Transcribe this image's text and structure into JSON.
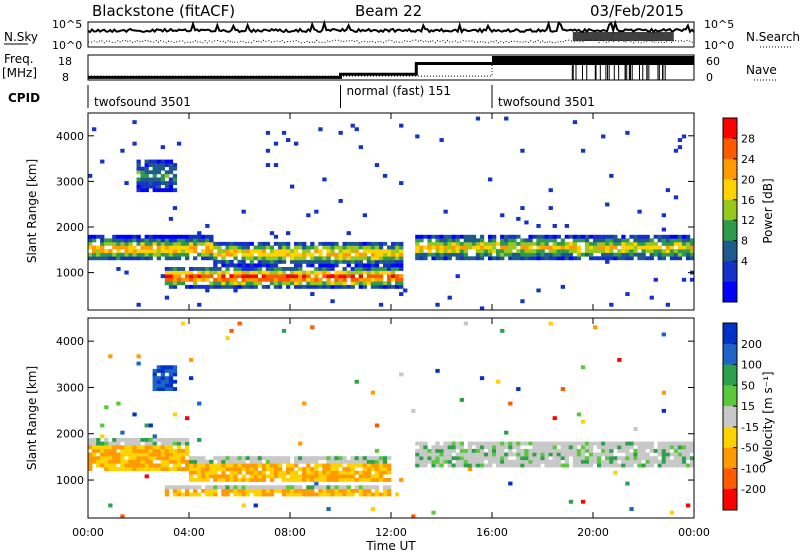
{
  "header": {
    "station": "Blackstone (fitACF)",
    "beam": "Beam 22",
    "date": "03/Feb/2015"
  },
  "status": {
    "nsky_label": "N.Sky",
    "nsearch_label": "N.Search",
    "noise_left_ticks": [
      "10^5",
      "10^0"
    ],
    "noise_right_ticks": [
      "10^5",
      "10^0"
    ],
    "freq_label_top": "Freq.",
    "freq_label_unit": "[MHz]",
    "freq_ticks": [
      "18",
      "8"
    ],
    "nave_label": "Nave",
    "nave_ticks": [
      "60",
      "0"
    ],
    "cpid_label": "CPID",
    "cpid_segments": [
      {
        "name": "twofsound 3501",
        "start_h": 0,
        "end_h": 10
      },
      {
        "name": "normal (fast) 151",
        "start_h": 10,
        "end_h": 16
      },
      {
        "name": "twofsound 3501",
        "start_h": 16,
        "end_h": 24
      }
    ],
    "freq_series_mhz": [
      [
        0,
        9.2
      ],
      [
        10,
        9.2
      ],
      [
        10,
        10.6
      ],
      [
        13,
        10.6
      ],
      [
        13,
        15.5
      ],
      [
        24,
        15.5
      ]
    ],
    "nave_series": [
      [
        0,
        8
      ],
      [
        16,
        8
      ],
      [
        16,
        48
      ],
      [
        24,
        48
      ]
    ]
  },
  "colors": {
    "velocity_ground": "#bdbdbd",
    "frame": "#000000"
  },
  "chart_data": [
    {
      "type": "heatmap",
      "panel": "power",
      "ylabel": "Slant Range [km]",
      "y_ticks": [
        1000,
        2000,
        3000,
        4000
      ],
      "ylim": [
        180,
        4500
      ],
      "xlim_hours": [
        0,
        24
      ],
      "colorbar": {
        "label": "Power [dB]",
        "ticks": [
          "28",
          "24",
          "20",
          "16",
          "12",
          "8",
          "4"
        ],
        "colors": [
          "#ff0000",
          "#ff5a00",
          "#ff9a00",
          "#ffd200",
          "#96c81e",
          "#2d9b4b",
          "#1e5a8c",
          "#1432c8",
          "#0000ff"
        ]
      },
      "bands": [
        {
          "t0": 0,
          "t1": 5,
          "r_lo": 1250,
          "r_hi": 1800,
          "scale": 0.8
        },
        {
          "t0": 5,
          "t1": 12.5,
          "r_lo": 1150,
          "r_hi": 1700,
          "scale": 0.75
        },
        {
          "t0": 3,
          "t1": 12.5,
          "r_lo": 650,
          "r_hi": 1150,
          "scale": 1.0
        },
        {
          "t0": 13,
          "t1": 24,
          "r_lo": 1250,
          "r_hi": 1850,
          "scale": 0.65
        },
        {
          "t0": 2,
          "t1": 3.5,
          "r_lo": 2800,
          "r_hi": 3500,
          "scale": 0.4
        }
      ]
    },
    {
      "type": "heatmap",
      "panel": "velocity",
      "ylabel": "Slant Range [km]",
      "y_ticks": [
        1000,
        2000,
        3000,
        4000
      ],
      "ylim": [
        180,
        4500
      ],
      "xlim_hours": [
        0,
        24
      ],
      "colorbar": {
        "label": "Velocity [m s⁻¹]",
        "ticks": [
          "200",
          "100",
          "50",
          "15",
          "-15",
          "-50",
          "-100",
          "-200"
        ],
        "colors": [
          "#0032c8",
          "#1e64c8",
          "#2da04b",
          "#5ac83c",
          "#c8c8c8",
          "#ffd200",
          "#ff9a00",
          "#ff5a00",
          "#ff0000"
        ]
      },
      "bands": [
        {
          "t0": 0,
          "t1": 4,
          "r_lo": 1200,
          "r_hi": 1900,
          "scale": 0.6
        },
        {
          "t0": 4,
          "t1": 12,
          "r_lo": 1000,
          "r_hi": 1500,
          "scale": 0.8
        },
        {
          "t0": 3,
          "t1": 12,
          "r_lo": 650,
          "r_hi": 900,
          "scale": 0.6
        },
        {
          "t0": 13,
          "t1": 24,
          "r_lo": 1250,
          "r_hi": 1850,
          "scale": 0.3
        },
        {
          "t0": 2.5,
          "t1": 3.5,
          "r_lo": 2900,
          "r_hi": 3500,
          "scale": -0.9
        }
      ]
    }
  ],
  "x_axis": {
    "label": "Time UT",
    "ticks": [
      "00:00",
      "04:00",
      "08:00",
      "12:00",
      "16:00",
      "20:00",
      "00:00"
    ]
  }
}
